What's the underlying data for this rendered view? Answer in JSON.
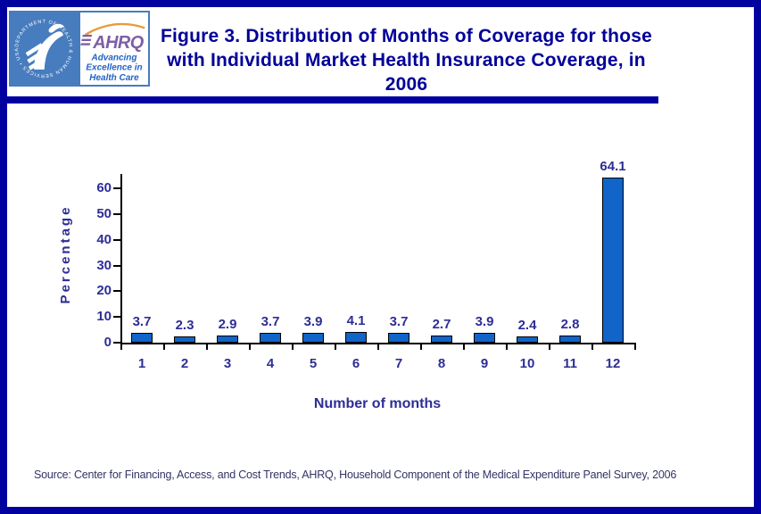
{
  "header": {
    "title_line1": "Figure 3. Distribution of Months of Coverage for those",
    "title_line2": "with Individual Market Health Insurance Coverage, in 2006",
    "title_color": "#000099",
    "logo": {
      "agency_acronym": "AHRQ",
      "tagline_line1": "Advancing",
      "tagline_line2": "Excellence in",
      "tagline_line3": "Health Care",
      "seal_ring_text": "DEPARTMENT OF HEALTH & HUMAN SERVICES • USA",
      "hhs_blue": "#477CBE",
      "ahrq_purple": "#7D5FA6",
      "arc_orange": "#E89B3C",
      "tagline_blue": "#1F63C5"
    }
  },
  "chart_data": {
    "type": "bar",
    "title": "Figure 3. Distribution of Months of Coverage for those with Individual Market Health Insurance Coverage, in 2006",
    "categories": [
      "1",
      "2",
      "3",
      "4",
      "5",
      "6",
      "7",
      "8",
      "9",
      "10",
      "11",
      "12"
    ],
    "values": [
      3.7,
      2.3,
      2.9,
      3.7,
      3.9,
      4.1,
      3.7,
      2.7,
      3.9,
      2.4,
      2.8,
      64.1
    ],
    "value_labels": [
      "3.7",
      "2.3",
      "2.9",
      "3.7",
      "3.9",
      "4.1",
      "3.7",
      "2.7",
      "3.9",
      "2.4",
      "2.8",
      "64.1"
    ],
    "xlabel": "Number of months",
    "ylabel": "Percentage",
    "ylim": [
      0,
      60
    ],
    "yticks": [
      0,
      10,
      20,
      30,
      40,
      50,
      60
    ],
    "grid": false,
    "legend": null,
    "bar_color": "#1164C8",
    "bar_border_color": "#000000",
    "axis_color": "#000000",
    "label_color": "#2D2D96"
  },
  "footer": {
    "source": "Source: Center for Financing, Access, and Cost Trends, AHRQ, Household Component of the Medical Expenditure Panel Survey, 2006"
  }
}
